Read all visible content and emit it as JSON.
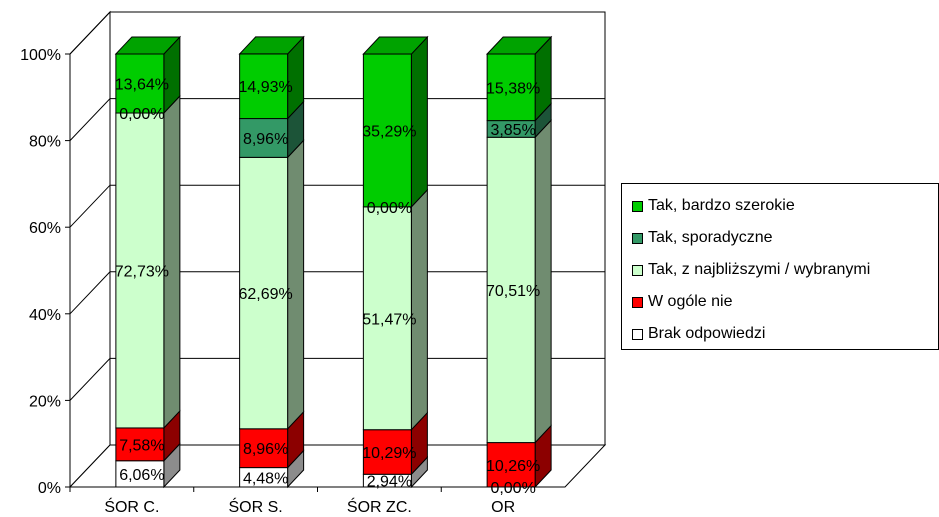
{
  "chart_data": {
    "type": "bar",
    "stacked": "percent",
    "three_d": true,
    "categories": [
      "ŚOR C.",
      "ŚOR S.",
      "ŚOR ZC.",
      "OR"
    ],
    "y_ticks": [
      "0%",
      "20%",
      "40%",
      "60%",
      "80%",
      "100%"
    ],
    "ylim": [
      0,
      100
    ],
    "grid": true,
    "legend_position": "right",
    "series": [
      {
        "name": "Brak odpowiedzi",
        "color": "#ffffff",
        "values": [
          6.06,
          4.48,
          2.94,
          0.0
        ],
        "labels": [
          "6,06%",
          "4,48%",
          "2,94%",
          "0,00%"
        ]
      },
      {
        "name": "W ogóle nie",
        "color": "#ff0000",
        "values": [
          7.58,
          8.96,
          10.29,
          10.26
        ],
        "labels": [
          "7,58%",
          "8,96%",
          "10,29%",
          "10,26%"
        ]
      },
      {
        "name": "Tak, z najbliższymi / wybranymi",
        "color": "#ccffcc",
        "values": [
          72.73,
          62.69,
          51.47,
          70.51
        ],
        "labels": [
          "72,73%",
          "62,69%",
          "51,47%",
          "70,51%"
        ]
      },
      {
        "name": "Tak, sporadyczne",
        "color": "#339966",
        "values": [
          0.0,
          8.96,
          0.0,
          3.85
        ],
        "labels": [
          "0,00%",
          "8,96%",
          "0,00%",
          "3,85%"
        ]
      },
      {
        "name": "Tak, bardzo szerokie",
        "color": "#00cc00",
        "values": [
          13.64,
          14.93,
          35.29,
          15.38
        ],
        "labels": [
          "13,64%",
          "14,93%",
          "35,29%",
          "15,38%"
        ]
      }
    ],
    "legend_order": [
      4,
      3,
      2,
      1,
      0
    ]
  }
}
